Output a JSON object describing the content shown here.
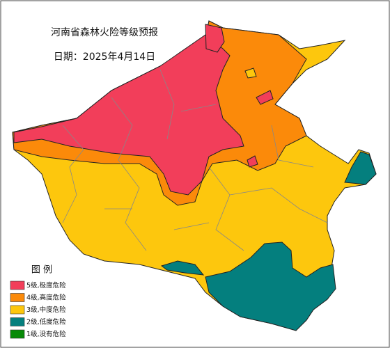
{
  "title": "河南省森林火险等级预报",
  "date": "日期：2025年4月14日",
  "legend": {
    "title": "图  例",
    "items": [
      {
        "label": "5级,极度危险",
        "color": "#f23e5a"
      },
      {
        "label": "4级,高度危险",
        "color": "#fb8a0a"
      },
      {
        "label": "3级,中度危险",
        "color": "#fdc70d"
      },
      {
        "label": "2级,低度危险",
        "color": "#047f7e"
      },
      {
        "label": "1级,没有危险",
        "color": "#078a07"
      }
    ]
  }
}
